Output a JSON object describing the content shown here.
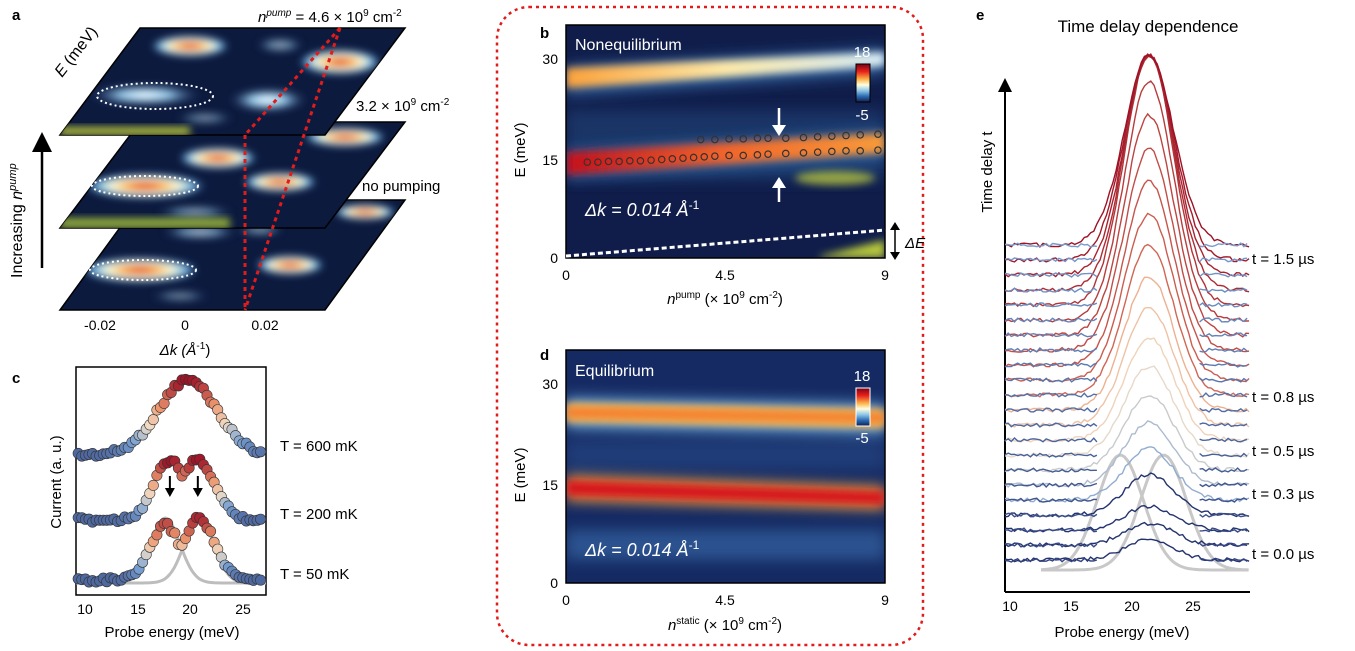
{
  "panels": {
    "a": {
      "label": "a",
      "ylabel_prefix": "E",
      "ylabel_suffix": " (meV)",
      "arrow_label_prefix": "Increasing ",
      "arrow_label_n": "n",
      "arrow_label_sup": "pump",
      "xlabel": "Δk (Å",
      "xlabel_sup": "-1",
      "xlabel_close": ")",
      "xticks": [
        "-0.02",
        "0",
        "0.02"
      ],
      "annotations": {
        "top_n": "n",
        "top_sup": "pump",
        "top_val": " = 4.6 × 10",
        "top_exp": "9",
        "top_unit": " cm",
        "top_unit_exp": "-2",
        "mid_val": "3.2 × 10",
        "mid_exp": "9",
        "mid_unit": " cm",
        "mid_unit_exp": "-2",
        "bottom": "no pumping"
      }
    },
    "b": {
      "label": "b",
      "title": "Nonequilibrium",
      "ylabel": "E (meV)",
      "yticks": [
        "30",
        "15",
        "0"
      ],
      "xticks": [
        "0",
        "4.5",
        "9"
      ],
      "xlabel_n": "n",
      "xlabel_sup": "pump",
      "xlabel_rest": " (× 10",
      "xlabel_exp": "9",
      "xlabel_unit": " cm",
      "xlabel_unit_exp": "-2",
      "xlabel_close": ")",
      "dk_text": "Δk = 0.014 Å",
      "dk_exp": "-1",
      "cbar_max": "18",
      "cbar_min": "-5",
      "delta_e": "ΔE"
    },
    "c": {
      "label": "c",
      "ylabel": "Current (a. u.)",
      "xlabel": "Probe energy (meV)",
      "xticks": [
        "10",
        "15",
        "20",
        "25"
      ],
      "curve_labels": [
        "T = 600 mK",
        "T = 200 mK",
        "T = 50 mK"
      ]
    },
    "d": {
      "label": "d",
      "title": "Equilibrium",
      "ylabel": "E (meV)",
      "yticks": [
        "30",
        "15",
        "0"
      ],
      "xticks": [
        "0",
        "4.5",
        "9"
      ],
      "xlabel_n": "n",
      "xlabel_sup": "static",
      "xlabel_rest": " (× 10",
      "xlabel_exp": "9",
      "xlabel_unit": " cm",
      "xlabel_unit_exp": "-2",
      "xlabel_close": ")",
      "dk_text": "Δk = 0.014 Å",
      "dk_exp": "-1",
      "cbar_max": "18",
      "cbar_min": "-5"
    },
    "e": {
      "label": "e",
      "title": "Time delay dependence",
      "ylabel": "Time delay t",
      "xlabel": "Probe energy (meV)",
      "xticks": [
        "10",
        "15",
        "20",
        "25"
      ],
      "delay_labels": [
        "t = 1.5 µs",
        "t = 0.8 µs",
        "t = 0.5 µs",
        "t = 0.3 µs",
        "t = 0.0 µs"
      ]
    }
  },
  "chart_data": [
    {
      "panel": "b",
      "type": "heatmap",
      "title": "Nonequilibrium",
      "xlabel": "n^pump (× 10^9 cm^-2)",
      "ylabel": "E (meV)",
      "xlim": [
        0,
        9
      ],
      "ylim": [
        0,
        35
      ],
      "colorbar_range": [
        -5,
        18
      ],
      "bands": [
        {
          "x": [
            0,
            9
          ],
          "E": [
            28.5,
            31
          ]
        },
        {
          "x": [
            0,
            9
          ],
          "E": [
            14.5,
            17.5
          ]
        }
      ],
      "markers": {
        "upper": {
          "x": [
            3.8,
            4.2,
            4.6,
            5.0,
            5.4,
            5.7,
            6.2,
            6.7,
            7.1,
            7.5,
            7.9,
            8.3,
            8.8
          ],
          "E": [
            17.8,
            17.8,
            17.9,
            17.9,
            18.0,
            18.0,
            18.0,
            18.1,
            18.2,
            18.3,
            18.4,
            18.5,
            18.6
          ]
        },
        "lower": {
          "x": [
            0.6,
            0.9,
            1.2,
            1.5,
            1.8,
            2.1,
            2.4,
            2.7,
            3.0,
            3.3,
            3.6,
            3.9,
            4.2,
            4.6,
            5.0,
            5.4,
            5.7,
            6.2,
            6.7,
            7.1,
            7.5,
            7.9,
            8.3,
            8.8
          ],
          "E": [
            14.4,
            14.4,
            14.5,
            14.5,
            14.6,
            14.6,
            14.7,
            14.8,
            14.9,
            15.0,
            15.1,
            15.2,
            15.3,
            15.4,
            15.4,
            15.5,
            15.6,
            15.7,
            15.8,
            15.9,
            16.0,
            16.1,
            16.1,
            16.2
          ]
        }
      },
      "deltaE_line": {
        "x": [
          0,
          9
        ],
        "E": [
          0.3,
          4.2
        ]
      },
      "dk": "0.014 Å^-1"
    },
    {
      "panel": "d",
      "type": "heatmap",
      "title": "Equilibrium",
      "xlabel": "n^static (× 10^9 cm^-2)",
      "ylabel": "E (meV)",
      "xlim": [
        0,
        9
      ],
      "ylim": [
        0,
        35
      ],
      "colorbar_range": [
        -5,
        18
      ],
      "bands": [
        {
          "x": [
            0,
            9
          ],
          "E": [
            28.0,
            27.0
          ]
        },
        {
          "x": [
            0,
            9
          ],
          "E": [
            14.6,
            13.2
          ]
        }
      ],
      "dk": "0.014 Å^-1"
    },
    {
      "panel": "c",
      "type": "scatter",
      "xlabel": "Probe energy (meV)",
      "ylabel": "Current (a. u.)",
      "xlim": [
        10,
        27
      ],
      "series": [
        {
          "name": "T = 600 mK",
          "peak_energy": 20.0
        },
        {
          "name": "T = 200 mK",
          "peak_energy": 20.5
        },
        {
          "name": "T = 50 mK",
          "peak_energy": 19.5
        }
      ],
      "fit_peaks": [
        18.0,
        21.0
      ]
    },
    {
      "panel": "e",
      "type": "line",
      "title": "Time delay dependence",
      "xlabel": "Probe energy (meV)",
      "ylabel": "Time delay t",
      "xlim": [
        10,
        27
      ],
      "peak_energy": 20,
      "labeled_delays_us": [
        1.5,
        0.8,
        0.5,
        0.3,
        0.0
      ],
      "fit_peaks": [
        18.0,
        21.0
      ]
    }
  ]
}
